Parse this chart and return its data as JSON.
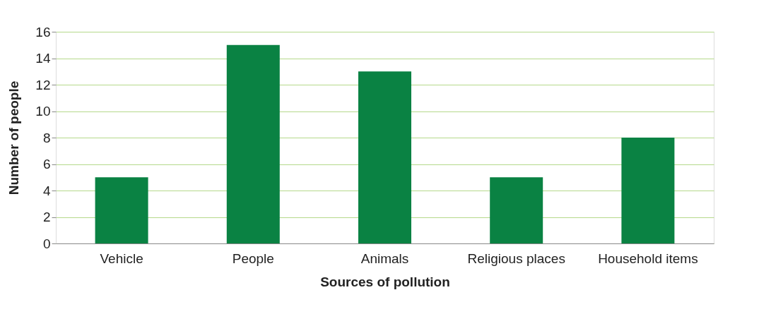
{
  "chart_data": {
    "type": "bar",
    "xlabel": "Sources of pollution",
    "ylabel": "Number of people",
    "categories": [
      "Vehicle",
      "People",
      "Animals",
      "Religious places",
      "Household items"
    ],
    "values": [
      5,
      15,
      13,
      5,
      8
    ],
    "color": "#0a8243",
    "ylim": [
      0,
      16
    ],
    "yticks": [
      0,
      2,
      4,
      6,
      8,
      10,
      12,
      14,
      16
    ],
    "grid": "y"
  }
}
